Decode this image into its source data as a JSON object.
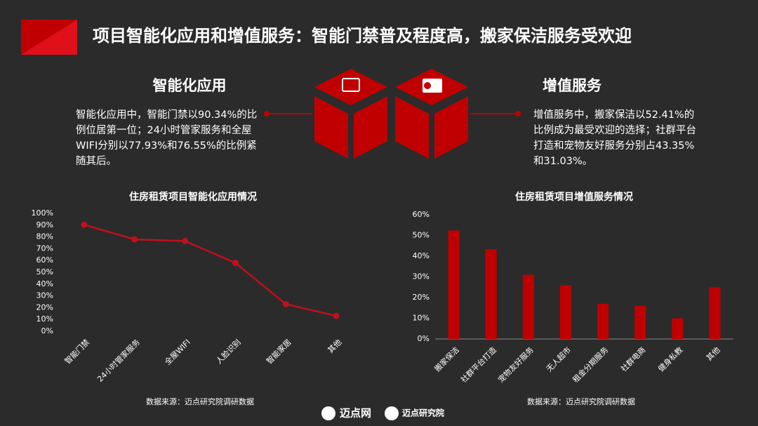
{
  "header": {
    "title": "项目智能化应用和增值服务：智能门禁普及程度高，搬家保洁服务受欢迎"
  },
  "sections": [
    {
      "title": "智能化应用",
      "text": "智能化应用中，智能门禁以90.34%的比例位居第一位；24小时管家服务和全屋WIFI分别以77.93%和76.55%的比例紧随其后。"
    },
    {
      "title": "增值服务",
      "text": "增值服务中，搬家保洁以52.41%的比例成为最受欢迎的选择；社群平台打造和宠物友好服务分别占43.35%和31.03%。"
    }
  ],
  "chart_data": [
    {
      "type": "line",
      "title": "住房租赁项目智能化应用情况",
      "source": "数据来源：迈点研究院调研数据",
      "categories": [
        "智能门禁",
        "24小时管家服务",
        "全屋WIFI",
        "人脸识别",
        "智能家居",
        "其他"
      ],
      "values": [
        90.34,
        77.93,
        76.55,
        58,
        23,
        13
      ],
      "color": "#c0101a",
      "ylim": [
        0,
        100
      ],
      "yticks": [
        {
          "value": 0,
          "label": "0%"
        },
        {
          "value": 10,
          "label": "10%"
        },
        {
          "value": 20,
          "label": "20%"
        },
        {
          "value": 30,
          "label": "30%"
        },
        {
          "value": 40,
          "label": "40%"
        },
        {
          "value": 50,
          "label": "50%"
        },
        {
          "value": 60,
          "label": "60%"
        },
        {
          "value": 70,
          "label": "70%"
        },
        {
          "value": 80,
          "label": "80%"
        },
        {
          "value": 90,
          "label": "90%"
        },
        {
          "value": 100,
          "label": "100%"
        }
      ]
    },
    {
      "type": "bar",
      "title": "住房租赁项目增值服务情况",
      "source": "数据来源：迈点研究院调研数据",
      "categories": [
        "搬家保洁",
        "社群平台打造",
        "宠物友好服务",
        "无人超市",
        "租金分期服务",
        "社群电商",
        "健身私教",
        "其他"
      ],
      "values": [
        52.41,
        43.35,
        31.03,
        26,
        17,
        16,
        10,
        25
      ],
      "color": "#c00000",
      "ylim": [
        0,
        60
      ],
      "yticks": [
        {
          "value": 0,
          "label": "0%"
        },
        {
          "value": 10,
          "label": "10%"
        },
        {
          "value": 20,
          "label": "20%"
        },
        {
          "value": 30,
          "label": "30%"
        },
        {
          "value": 40,
          "label": "40%"
        },
        {
          "value": 50,
          "label": "50%"
        },
        {
          "value": 60,
          "label": "60%"
        }
      ]
    }
  ],
  "footer": {
    "logos": [
      "迈点网",
      "迈点研究院"
    ]
  }
}
